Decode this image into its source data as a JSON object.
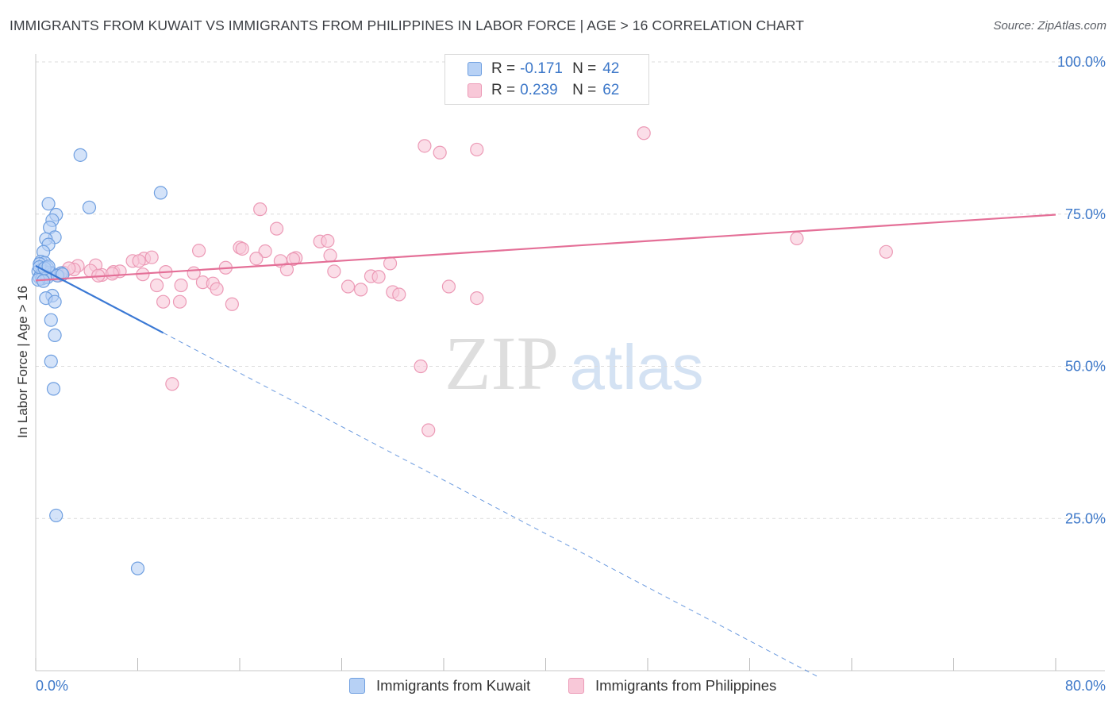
{
  "title": "IMMIGRANTS FROM KUWAIT VS IMMIGRANTS FROM PHILIPPINES IN LABOR FORCE | AGE > 16 CORRELATION CHART",
  "source": "Source: ZipAtlas.com",
  "watermark": {
    "zip": "ZIP",
    "atlas": "atlas"
  },
  "legend": {
    "series1": {
      "r_label": "R =",
      "r_value": "-0.171",
      "n_label": "N =",
      "n_value": "42"
    },
    "series2": {
      "r_label": "R =",
      "r_value": "0.239",
      "n_label": "N =",
      "n_value": "62"
    }
  },
  "bottom_legend": {
    "series1": "Immigrants from Kuwait",
    "series2": "Immigrants from Philippines"
  },
  "colors": {
    "kuwait_fill": "#b7d1f5",
    "kuwait_stroke": "#6f9fe0",
    "kuwait_line": "#3a78d4",
    "phil_fill": "#f8c8d8",
    "phil_stroke": "#ec9ab6",
    "phil_line": "#e46f97",
    "axis_text": "#3d78c9",
    "grid": "#dcdcdc"
  },
  "chart_data": {
    "type": "scatter",
    "title": "IMMIGRANTS FROM KUWAIT VS IMMIGRANTS FROM PHILIPPINES IN LABOR FORCE | AGE > 16 CORRELATION CHART",
    "xlabel": "",
    "ylabel": "In Labor Force | Age > 16",
    "xlim": [
      0,
      80
    ],
    "ylim": [
      0,
      100
    ],
    "x_tick_labels": [
      "0.0%",
      "80.0%"
    ],
    "y_ticks": [
      25,
      50,
      75,
      100
    ],
    "y_tick_labels": [
      "25.0%",
      "50.0%",
      "75.0%",
      "100.0%"
    ],
    "grid": true,
    "series": [
      {
        "name": "Immigrants from Kuwait",
        "r": -0.171,
        "n": 42,
        "trend": {
          "x0": 0,
          "y0": 66.5,
          "x1": 10,
          "y1": 55.5,
          "dash_to_x": 61.5
        },
        "points": [
          [
            3.5,
            84.7
          ],
          [
            9.8,
            78.5
          ],
          [
            4.2,
            76.1
          ],
          [
            1.0,
            76.7
          ],
          [
            1.6,
            74.9
          ],
          [
            1.3,
            74.0
          ],
          [
            1.1,
            72.8
          ],
          [
            1.5,
            71.2
          ],
          [
            0.8,
            70.9
          ],
          [
            1.0,
            70.0
          ],
          [
            0.6,
            68.8
          ],
          [
            0.4,
            67.2
          ],
          [
            0.7,
            67.0
          ],
          [
            0.3,
            66.8
          ],
          [
            0.9,
            66.2
          ],
          [
            0.5,
            65.9
          ],
          [
            0.2,
            65.6
          ],
          [
            0.6,
            65.5
          ],
          [
            1.1,
            65.4
          ],
          [
            1.3,
            65.2
          ],
          [
            0.4,
            65.0
          ],
          [
            0.8,
            64.8
          ],
          [
            2.0,
            65.3
          ],
          [
            0.3,
            64.6
          ],
          [
            0.5,
            64.4
          ],
          [
            0.9,
            64.6
          ],
          [
            1.7,
            64.9
          ],
          [
            2.1,
            65.1
          ],
          [
            0.2,
            64.2
          ],
          [
            0.6,
            64.0
          ],
          [
            1.3,
            61.6
          ],
          [
            0.8,
            61.2
          ],
          [
            1.5,
            60.6
          ],
          [
            1.2,
            57.6
          ],
          [
            1.5,
            55.1
          ],
          [
            1.2,
            50.8
          ],
          [
            1.4,
            46.3
          ],
          [
            1.6,
            25.5
          ],
          [
            8.0,
            16.8
          ],
          [
            0.3,
            66.3
          ],
          [
            0.7,
            66.1
          ],
          [
            1.0,
            66.4
          ]
        ]
      },
      {
        "name": "Immigrants from Philippines",
        "r": 0.239,
        "n": 62,
        "trend": {
          "x0": 0,
          "y0": 64.1,
          "x1": 80,
          "y1": 74.9
        },
        "points": [
          [
            47.7,
            88.3
          ],
          [
            30.5,
            86.2
          ],
          [
            31.7,
            85.1
          ],
          [
            34.6,
            85.6
          ],
          [
            17.6,
            75.8
          ],
          [
            18.9,
            72.6
          ],
          [
            59.7,
            71.0
          ],
          [
            22.3,
            70.5
          ],
          [
            22.9,
            70.6
          ],
          [
            16.0,
            69.5
          ],
          [
            16.2,
            69.3
          ],
          [
            12.8,
            69.0
          ],
          [
            18.0,
            68.9
          ],
          [
            66.7,
            68.8
          ],
          [
            8.5,
            67.7
          ],
          [
            20.4,
            67.8
          ],
          [
            20.2,
            67.6
          ],
          [
            17.3,
            67.7
          ],
          [
            19.2,
            67.3
          ],
          [
            23.1,
            68.2
          ],
          [
            7.6,
            67.3
          ],
          [
            8.1,
            67.3
          ],
          [
            9.1,
            67.9
          ],
          [
            4.7,
            66.6
          ],
          [
            27.8,
            66.9
          ],
          [
            14.9,
            66.2
          ],
          [
            3.3,
            66.5
          ],
          [
            19.7,
            65.9
          ],
          [
            23.4,
            65.6
          ],
          [
            4.3,
            65.7
          ],
          [
            6.1,
            65.5
          ],
          [
            6.6,
            65.6
          ],
          [
            5.2,
            65.0
          ],
          [
            4.9,
            64.9
          ],
          [
            6.0,
            65.2
          ],
          [
            8.4,
            65.1
          ],
          [
            10.2,
            65.5
          ],
          [
            12.4,
            65.3
          ],
          [
            26.3,
            64.8
          ],
          [
            26.9,
            64.7
          ],
          [
            13.1,
            63.8
          ],
          [
            13.9,
            63.6
          ],
          [
            11.4,
            63.3
          ],
          [
            9.5,
            63.3
          ],
          [
            14.2,
            62.7
          ],
          [
            24.5,
            63.1
          ],
          [
            25.5,
            62.6
          ],
          [
            28.0,
            62.2
          ],
          [
            28.5,
            61.8
          ],
          [
            32.4,
            63.1
          ],
          [
            34.6,
            61.2
          ],
          [
            10.0,
            60.6
          ],
          [
            11.3,
            60.6
          ],
          [
            15.4,
            60.2
          ],
          [
            2.2,
            65.4
          ],
          [
            3.0,
            65.9
          ],
          [
            1.1,
            65.2
          ],
          [
            1.8,
            64.9
          ],
          [
            30.2,
            50.0
          ],
          [
            10.7,
            47.1
          ],
          [
            30.8,
            39.5
          ],
          [
            2.6,
            66.1
          ]
        ]
      }
    ]
  }
}
